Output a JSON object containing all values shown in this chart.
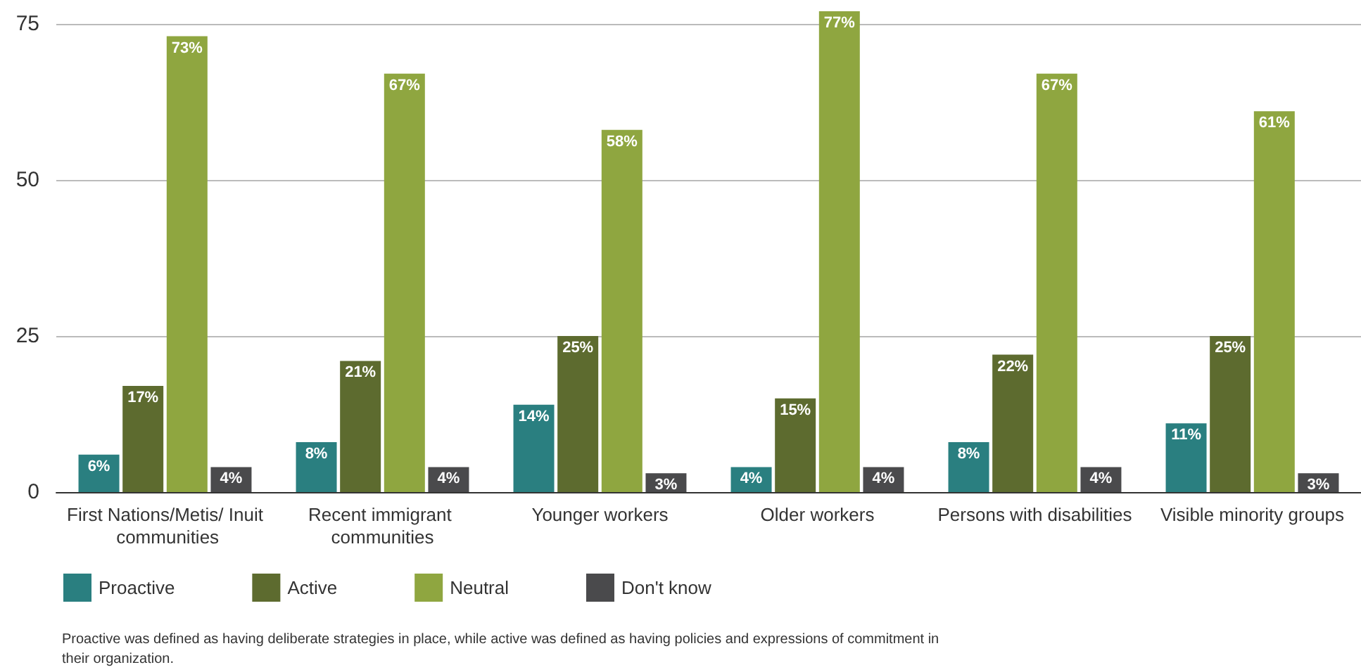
{
  "chart_data": {
    "type": "bar",
    "categories": [
      "First Nations/Metis/ Inuit communities",
      "Recent immigrant communities",
      "Younger workers",
      "Older workers",
      "Persons with disabilities",
      "Visible minority groups"
    ],
    "series": [
      {
        "name": "Proactive",
        "color": "#2a7f80",
        "values": [
          6,
          8,
          14,
          4,
          8,
          11
        ],
        "value_labels": [
          "6%",
          "8%",
          "14%",
          "4%",
          "8%",
          "11%"
        ]
      },
      {
        "name": "Active",
        "color": "#5d6b2f",
        "values": [
          17,
          21,
          25,
          15,
          22,
          25
        ],
        "value_labels": [
          "17%",
          "21%",
          "25%",
          "15%",
          "22%",
          "25%"
        ]
      },
      {
        "name": "Neutral",
        "color": "#8fa640",
        "values": [
          73,
          67,
          58,
          77,
          67,
          61
        ],
        "value_labels": [
          "73%",
          "67%",
          "58%",
          "77%",
          "67%",
          "61%"
        ]
      },
      {
        "name": "Don't know",
        "color": "#4a4a4c",
        "values": [
          4,
          4,
          3,
          4,
          4,
          3
        ],
        "value_labels": [
          "4%",
          "4%",
          "3%",
          "4%",
          "4%",
          "3%"
        ]
      }
    ],
    "ylim": [
      0,
      77
    ],
    "yticks": [
      0,
      25,
      50,
      75
    ],
    "grid": "y",
    "legend": "bottom left",
    "annotations": [
      "Proactive was defined as having deliberate strategies in place, while active was defined as having policies and expressions of commitment in their organization."
    ]
  }
}
